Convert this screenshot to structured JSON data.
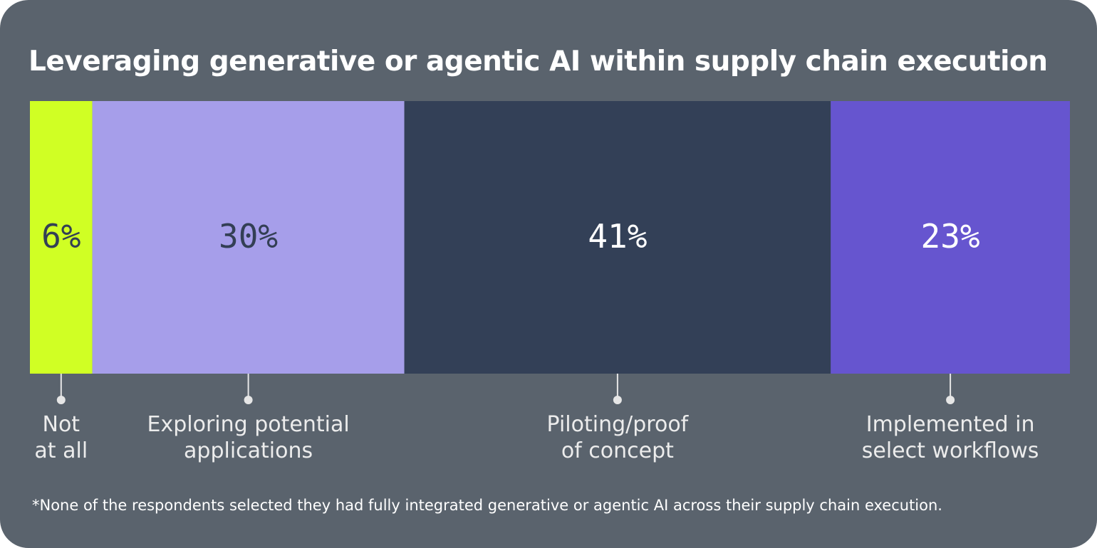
{
  "chart_data": {
    "type": "stacked-bar-horizontal",
    "title": "Leveraging generative or agentic AI within supply chain execution",
    "categories": [
      "Not at all",
      "Exploring potential applications",
      "Piloting/proof of concept",
      "Implemented in select workflows"
    ],
    "values": [
      6,
      30,
      41,
      23
    ],
    "value_labels": [
      "6%",
      "30%",
      "41%",
      "23%"
    ],
    "colors": [
      "#d0ff24",
      "#a69eea",
      "#334057",
      "#6655cf"
    ],
    "label_colors": [
      "#333f55",
      "#333f55",
      "#ffffff",
      "#ffffff"
    ],
    "xlim": [
      0,
      100
    ],
    "footnote": "*None of the respondents selected they had fully integrated generative or agentic AI across their supply chain execution."
  }
}
